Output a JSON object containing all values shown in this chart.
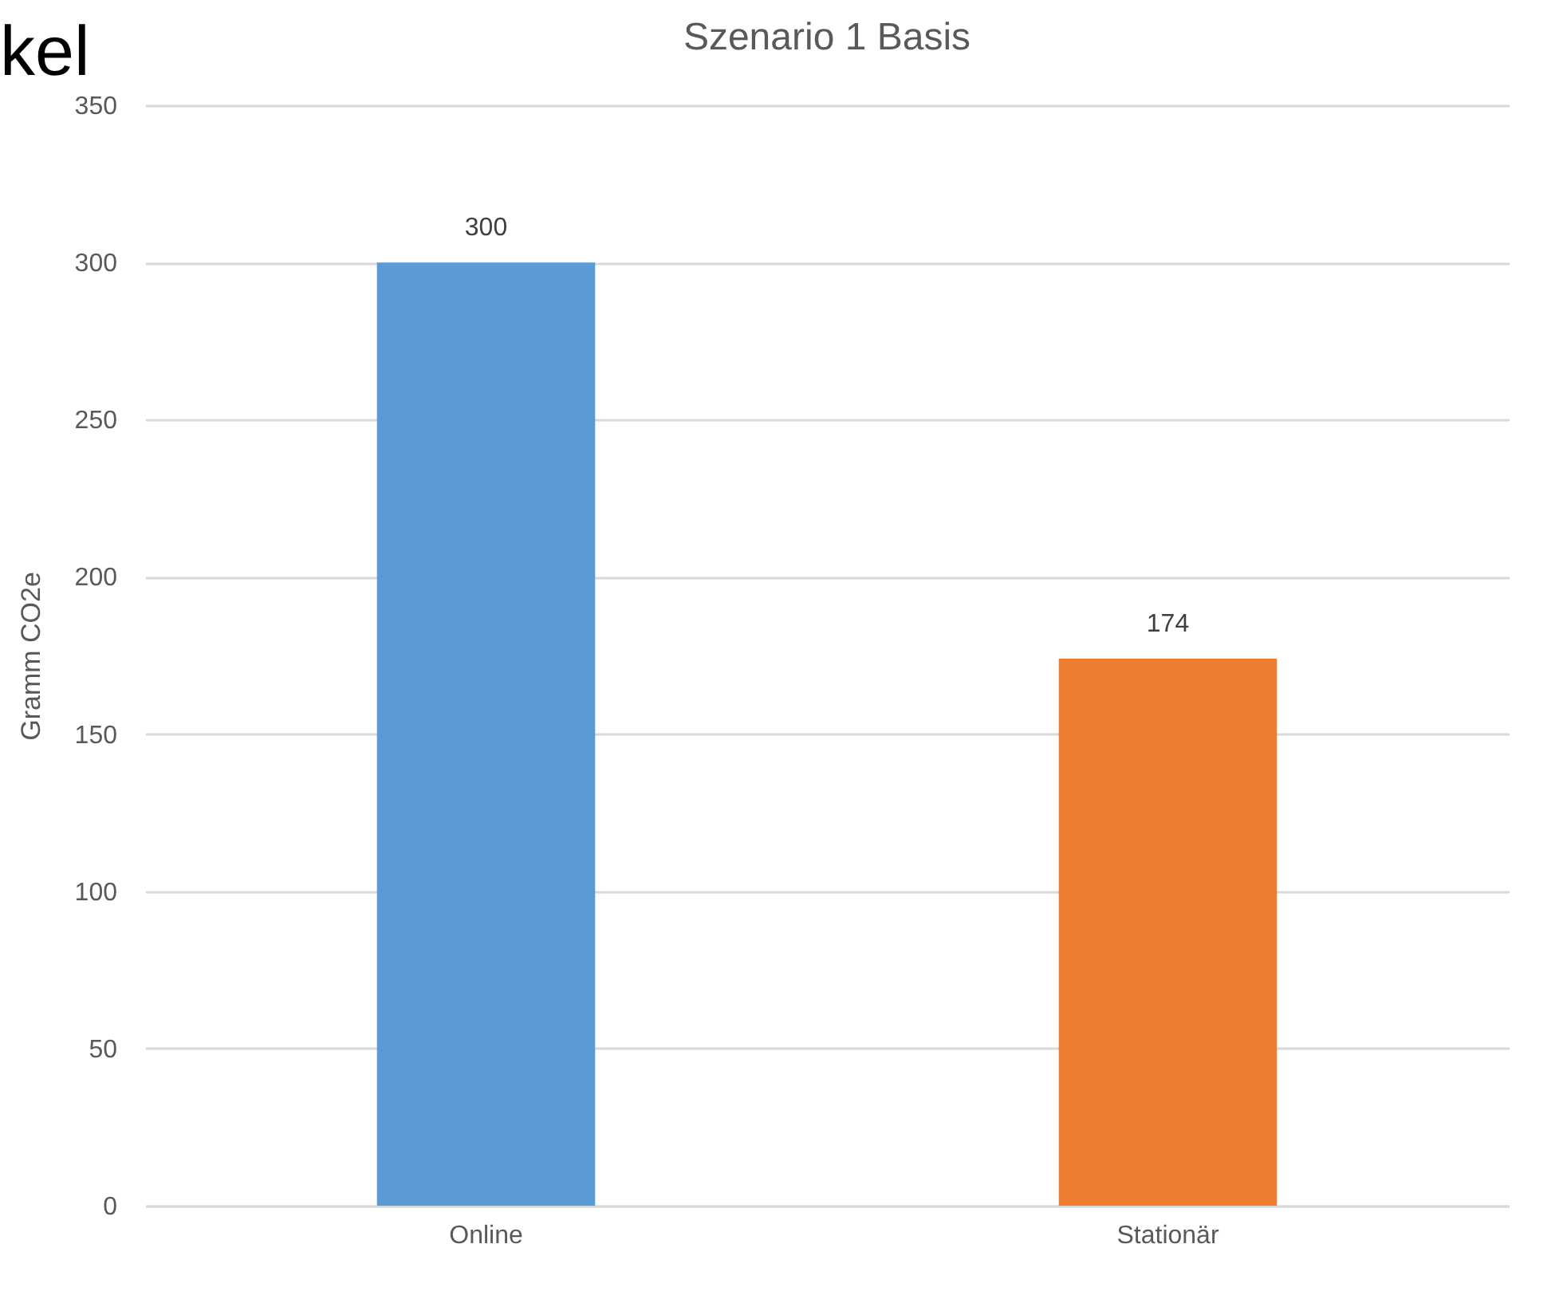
{
  "chart_data": {
    "type": "bar",
    "title": "Szenario 1 Basis",
    "ylabel": "Gramm CO2e",
    "categories": [
      "Online",
      "Stationär"
    ],
    "values": [
      300,
      174
    ],
    "colors": [
      "#5b9bd5",
      "#ed7d31"
    ],
    "ylim": [
      0,
      350
    ],
    "yticks": [
      0,
      50,
      100,
      150,
      200,
      250,
      300,
      350
    ],
    "grid": "y",
    "data_labels": true,
    "legend": false,
    "annotations": [
      "kel"
    ]
  }
}
